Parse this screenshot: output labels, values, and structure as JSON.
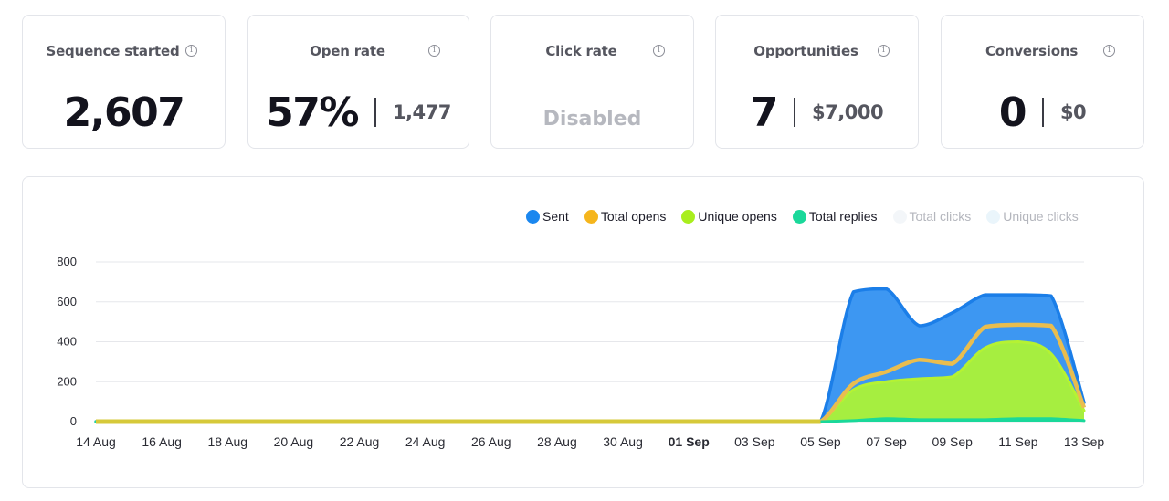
{
  "cards": [
    {
      "title": "Sequence started",
      "value": "2,607",
      "secondary": ""
    },
    {
      "title": "Open rate",
      "value": "57%",
      "secondary": "1,477"
    },
    {
      "title": "Click rate",
      "value": "",
      "secondary": "",
      "status": "Disabled"
    },
    {
      "title": "Opportunities",
      "value": "7",
      "secondary": "$7,000"
    },
    {
      "title": "Conversions",
      "value": "0",
      "secondary": "$0"
    }
  ],
  "info_icon_glyph": "i",
  "legend": [
    {
      "label": "Sent",
      "color": "#1b87ef",
      "enabled": true
    },
    {
      "label": "Total opens",
      "color": "#f5b51c",
      "enabled": true
    },
    {
      "label": "Unique opens",
      "color": "#a9ee1d",
      "enabled": true
    },
    {
      "label": "Total replies",
      "color": "#1ad89a",
      "enabled": true
    },
    {
      "label": "Total clicks",
      "color": "#f3f6f9",
      "enabled": false
    },
    {
      "label": "Unique clicks",
      "color": "#eaf5fb",
      "enabled": false
    }
  ],
  "chart_data": {
    "type": "area",
    "x": [
      "2023-08-14",
      "2023-08-15",
      "2023-08-16",
      "2023-08-17",
      "2023-08-18",
      "2023-08-19",
      "2023-08-20",
      "2023-08-21",
      "2023-08-22",
      "2023-08-23",
      "2023-08-24",
      "2023-08-25",
      "2023-08-26",
      "2023-08-27",
      "2023-08-28",
      "2023-08-29",
      "2023-08-30",
      "2023-08-31",
      "2023-09-01",
      "2023-09-02",
      "2023-09-03",
      "2023-09-04",
      "2023-09-05",
      "2023-09-06",
      "2023-09-07",
      "2023-09-08",
      "2023-09-09",
      "2023-09-10",
      "2023-09-11",
      "2023-09-12",
      "2023-09-13"
    ],
    "x_tick_labels": [
      "14 Aug",
      "16 Aug",
      "18 Aug",
      "20 Aug",
      "22 Aug",
      "24 Aug",
      "26 Aug",
      "28 Aug",
      "30 Aug",
      "01 Sep",
      "03 Sep",
      "05 Sep",
      "07 Sep",
      "09 Sep",
      "11 Sep",
      "13 Sep"
    ],
    "x_tick_bold": "01 Sep",
    "y_ticks": [
      0,
      200,
      400,
      600,
      800
    ],
    "ylim": [
      0,
      800
    ],
    "grid": true,
    "legend_position": "top-right",
    "series": [
      {
        "name": "Sent",
        "color": "#3d97f2",
        "values": [
          0,
          0,
          0,
          0,
          0,
          0,
          0,
          0,
          0,
          0,
          0,
          0,
          0,
          0,
          0,
          0,
          0,
          0,
          0,
          0,
          0,
          0,
          0,
          650,
          665,
          480,
          545,
          635,
          635,
          630,
          95
        ]
      },
      {
        "name": "Total opens",
        "color": "#e9bd4f",
        "values": [
          0,
          0,
          0,
          0,
          0,
          0,
          0,
          0,
          0,
          0,
          0,
          0,
          0,
          0,
          0,
          0,
          0,
          0,
          0,
          0,
          0,
          0,
          0,
          190,
          250,
          310,
          290,
          475,
          485,
          480,
          70
        ]
      },
      {
        "name": "Unique opens",
        "color": "#a6ee40",
        "values": [
          0,
          0,
          0,
          0,
          0,
          0,
          0,
          0,
          0,
          0,
          0,
          0,
          0,
          0,
          0,
          0,
          0,
          0,
          0,
          0,
          0,
          0,
          0,
          160,
          200,
          215,
          225,
          370,
          400,
          340,
          55
        ]
      },
      {
        "name": "Total replies",
        "color": "#1ad89a",
        "values": [
          0,
          0,
          0,
          0,
          0,
          0,
          0,
          0,
          0,
          0,
          0,
          0,
          0,
          0,
          0,
          0,
          0,
          0,
          0,
          0,
          0,
          0,
          0,
          5,
          15,
          10,
          10,
          10,
          15,
          15,
          5
        ]
      }
    ]
  }
}
